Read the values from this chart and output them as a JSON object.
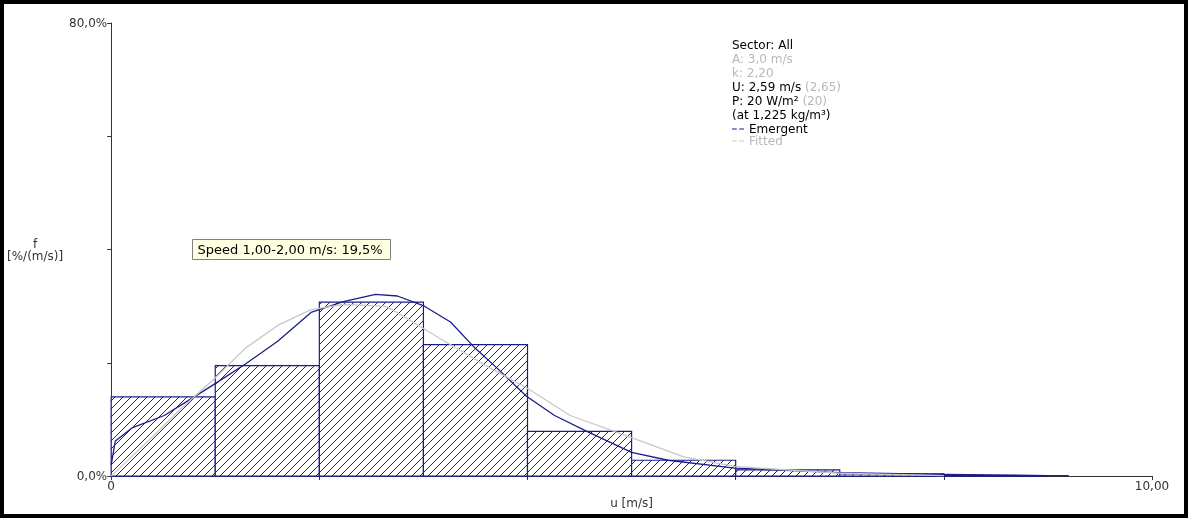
{
  "chart_data": {
    "type": "histogram",
    "xlabel": "u [m/s]",
    "ylabel": "f [%/(m/s)]",
    "bins": [
      0,
      1,
      2,
      3,
      4,
      5,
      6,
      7,
      8,
      9
    ],
    "values": [
      14.0,
      19.5,
      30.7,
      23.2,
      7.9,
      2.8,
      1.1,
      0.4,
      0.1
    ],
    "color": "#1c1c8c",
    "series": [
      {
        "type": "line",
        "name": "Emergent",
        "color": "#1c1c8c",
        "x": [
          0,
          0.04,
          0.2,
          0.51,
          0.79,
          0.98,
          1.29,
          1.6,
          1.92,
          2.23,
          2.54,
          2.75,
          3.01,
          3.26,
          3.48,
          3.7,
          3.99,
          4.26,
          4.57,
          5.0,
          5.35,
          5.99,
          7,
          8,
          9,
          9.2
        ],
        "values": [
          2.0,
          6.2,
          8.5,
          10.7,
          13.9,
          16.1,
          19.8,
          23.8,
          28.9,
          30.8,
          32.1,
          31.8,
          30.0,
          27.2,
          22.9,
          19.2,
          14.1,
          10.7,
          7.9,
          4.2,
          2.8,
          1.4,
          0.6,
          0.3,
          0.1,
          0.1
        ]
      },
      {
        "type": "line",
        "name": "Fitted",
        "color": "#c8c8c8",
        "x": [
          0,
          0.36,
          0.67,
          0.98,
          1.29,
          1.6,
          1.92,
          2.23,
          2.63,
          2.7,
          3.16,
          3.63,
          3.99,
          4.41,
          5.0,
          5.5,
          5.99,
          7,
          8
        ],
        "values": [
          0,
          6.3,
          11.9,
          17.0,
          22.6,
          26.6,
          29.4,
          30.3,
          30.0,
          29.4,
          24.3,
          19.2,
          15.6,
          10.7,
          6.8,
          3.4,
          1.7,
          0.5,
          0.1
        ]
      }
    ],
    "xlim": [
      0,
      10
    ],
    "ylim": [
      0,
      80
    ],
    "xticks": [
      {
        "value": 0,
        "label": "0"
      },
      {
        "value": 2,
        "label": null
      },
      {
        "value": 4,
        "label": null
      },
      {
        "value": 6,
        "label": null
      },
      {
        "value": 8,
        "label": null
      },
      {
        "value": 10,
        "label": "10,00"
      }
    ],
    "yticks": [
      {
        "value": 0,
        "label": "0,0%"
      },
      {
        "value": 20,
        "label": null
      },
      {
        "value": 40,
        "label": null
      },
      {
        "value": 60,
        "label": null
      },
      {
        "value": 80,
        "label": "80,0%"
      }
    ],
    "legend": "top right",
    "annotations": [
      "Speed 1,00-2,00 m/s: 19,5%",
      "Sector: All",
      "A: 3,0 m/s",
      "k: 2,20",
      "U: 2,59 m/s (2,65)",
      "P: 20 W/m² (20)",
      "(at 1,225 kg/m³)"
    ]
  }
}
